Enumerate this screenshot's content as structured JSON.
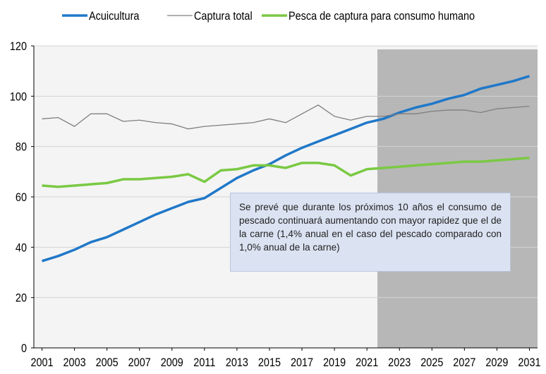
{
  "chart_data": {
    "type": "line",
    "x": [
      2001,
      2002,
      2003,
      2004,
      2005,
      2006,
      2007,
      2008,
      2009,
      2010,
      2011,
      2012,
      2013,
      2014,
      2015,
      2016,
      2017,
      2018,
      2019,
      2020,
      2021,
      2022,
      2023,
      2024,
      2025,
      2026,
      2027,
      2028,
      2029,
      2030,
      2031
    ],
    "series": [
      {
        "name": "Acuicultura",
        "color": "#1f78c8",
        "width": 3.5,
        "values": [
          34.5,
          36.5,
          39,
          42,
          44,
          47,
          50,
          53,
          55.5,
          58,
          59.5,
          63.5,
          67.5,
          70.5,
          73,
          76.5,
          79.5,
          82,
          84.5,
          87,
          89.5,
          91,
          93.5,
          95.5,
          97,
          99,
          100.5,
          103,
          104.5,
          106,
          108
        ]
      },
      {
        "name": "Captura total",
        "color": "#7f7f7f",
        "width": 1.3,
        "values": [
          91,
          91.5,
          88,
          93,
          93,
          90,
          90.5,
          89.5,
          89,
          87,
          88,
          88.5,
          89,
          89.5,
          91,
          89.5,
          93,
          96.5,
          92,
          90.5,
          92,
          92,
          93,
          93,
          94,
          94.5,
          94.5,
          93.5,
          95,
          95.5,
          96
        ]
      },
      {
        "name": "Pesca de captura para consumo humano",
        "color": "#7ac943",
        "width": 3.5,
        "values": [
          64.5,
          64,
          64.5,
          65,
          65.5,
          67,
          67,
          67.5,
          68,
          69,
          66,
          70.5,
          71,
          72.5,
          72.5,
          71.5,
          73.5,
          73.5,
          72.5,
          68.5,
          71,
          71.5,
          72,
          72.5,
          73,
          73.5,
          74,
          74,
          74.5,
          75,
          75.5
        ]
      }
    ],
    "xlim": [
      2000.5,
      2031.5
    ],
    "xticks": [
      2001,
      2003,
      2005,
      2007,
      2009,
      2011,
      2013,
      2015,
      2017,
      2019,
      2021,
      2023,
      2025,
      2027,
      2029,
      2031
    ],
    "ylim": [
      0,
      120
    ],
    "yticks": [
      0,
      20,
      40,
      60,
      80,
      100,
      120
    ],
    "grid": true,
    "annotation": "Se prevé que durante los próximos 10 años el consumo de pescado continuará aumentando con mayor rapidez que el de la carne (1,4% anual en el caso del pescado comparado con 1,0% anual de la carne)"
  }
}
